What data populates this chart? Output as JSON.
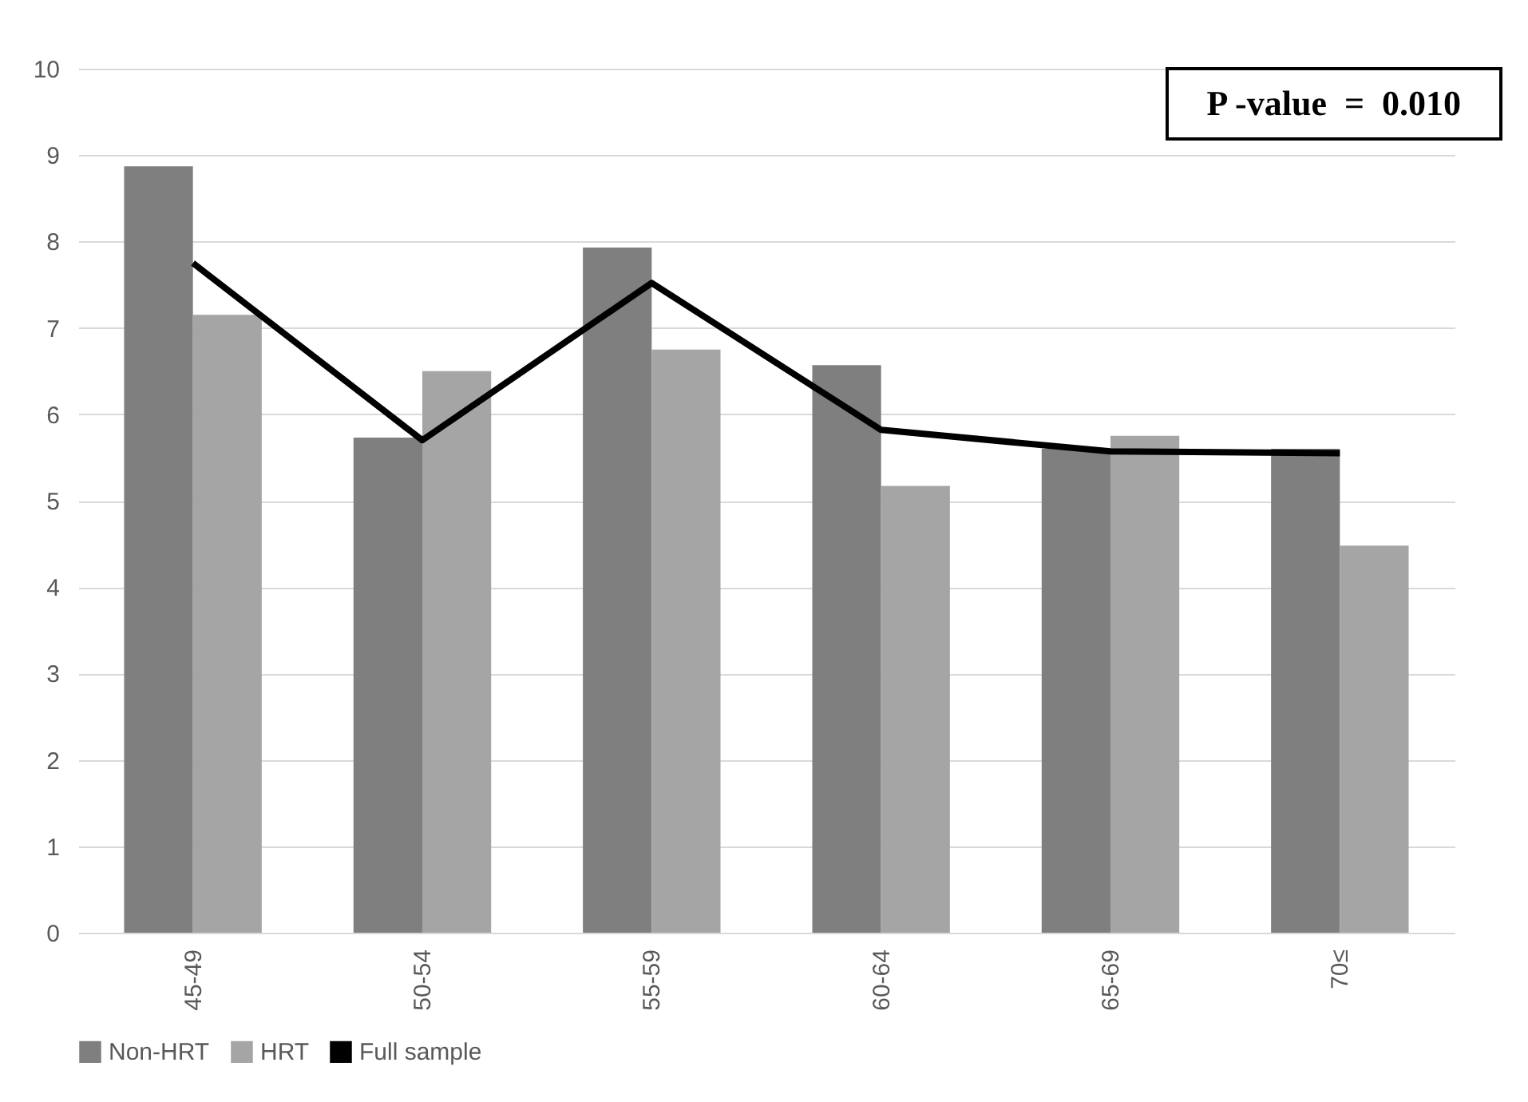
{
  "chart_data": {
    "type": "bar",
    "categories": [
      "45-49",
      "50-54",
      "55-59",
      "60-64",
      "65-69",
      "70≤"
    ],
    "series": [
      {
        "name": "Non-HRT",
        "color": "#7f7f7f",
        "values": [
          8.87,
          5.73,
          7.93,
          6.57,
          5.6,
          5.6
        ]
      },
      {
        "name": "HRT",
        "color": "#a5a5a5",
        "values": [
          7.15,
          6.5,
          6.75,
          5.17,
          5.75,
          4.48
        ]
      },
      {
        "name": "Full sample",
        "type": "line",
        "color": "#000000",
        "values": [
          7.75,
          5.7,
          7.52,
          5.82,
          5.57,
          5.55
        ]
      }
    ],
    "ylim": [
      0,
      10
    ],
    "yticks": [
      0,
      1,
      2,
      3,
      4,
      5,
      6,
      7,
      8,
      9,
      10
    ],
    "grid": "y",
    "legend": "bottom",
    "annotations": [
      "P -value  =  0.010"
    ]
  }
}
